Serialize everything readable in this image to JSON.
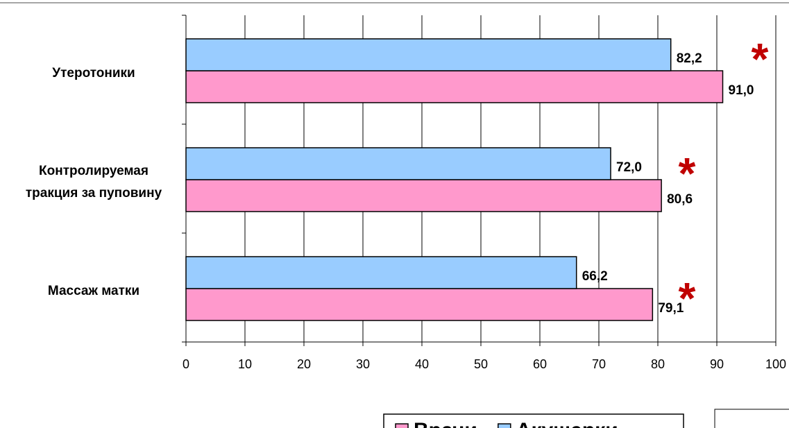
{
  "chart_data": {
    "type": "barh",
    "categories": [
      "Утеротоники",
      "Контролируемая\nтракция за пуповину",
      "Массаж матки"
    ],
    "series": [
      {
        "name": "Врачи",
        "color": "#ff99cc",
        "values": [
          91.0,
          80.6,
          79.1
        ],
        "value_labels": [
          "91,0",
          "80,6",
          "79,1"
        ]
      },
      {
        "name": "Акушерки",
        "color": "#99ccff",
        "values": [
          82.2,
          72.0,
          66.2
        ],
        "value_labels": [
          "82,2",
          "72,0",
          "66,2"
        ]
      }
    ],
    "xlim": [
      0,
      100
    ],
    "xticks": [
      0,
      10,
      20,
      30,
      40,
      50,
      60,
      70,
      80,
      90,
      100
    ],
    "grid": true,
    "annotations": [
      "*",
      "*",
      "*"
    ]
  }
}
